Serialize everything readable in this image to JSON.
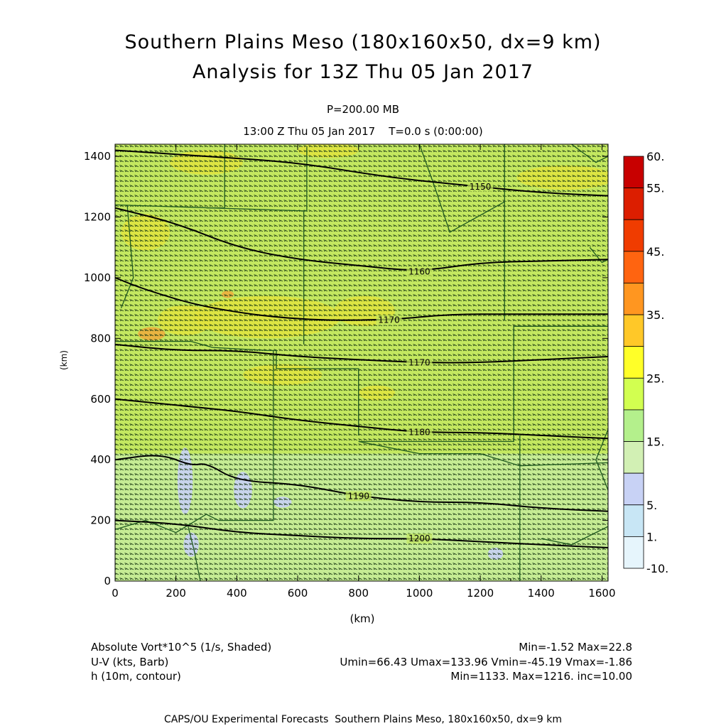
{
  "header": {
    "title_line1": "Southern Plains Meso (180x160x50, dx=9 km)",
    "title_line2": "Analysis for 13Z Thu 05 Jan 2017",
    "level": "P=200.00 MB",
    "valid_time": "13:00 Z Thu 05 Jan 2017    T=0.0 s (0:00:00)"
  },
  "chart_data": {
    "type": "heatmap",
    "xlabel": "(km)",
    "ylabel": "(km)",
    "xlim": [
      0,
      1620
    ],
    "ylim": [
      0,
      1440
    ],
    "x_ticks": [
      "0",
      "200",
      "400",
      "600",
      "800",
      "1000",
      "1200",
      "1400",
      "1600"
    ],
    "y_ticks": [
      "0",
      "200",
      "400",
      "600",
      "800",
      "1000",
      "1200",
      "1400"
    ],
    "colorbar": {
      "levels": [
        "60.",
        "55.",
        "45.",
        "35.",
        "25.",
        "15.",
        "5.",
        "1.",
        "-10."
      ],
      "colors": [
        "#c80000",
        "#dc1e00",
        "#f03c00",
        "#ff6410",
        "#ff9620",
        "#ffc828",
        "#ffff28",
        "#d2ff50",
        "#b4f08c",
        "#d2f0b4",
        "#c8d2f5",
        "#c8e6f5",
        "#e6f5fc"
      ]
    },
    "shading_colors": {
      "base_green": "#c4e860",
      "light_green": "#c6ec94",
      "yellow": "#e4e43c",
      "orange": "#f0aa3c",
      "blue": "#c8d2f5"
    },
    "height_contours": [
      {
        "label": "1150",
        "points": [
          [
            0,
            1420
          ],
          [
            300,
            1400
          ],
          [
            600,
            1380
          ],
          [
            900,
            1330
          ],
          [
            1200,
            1300
          ],
          [
            1400,
            1280
          ],
          [
            1620,
            1270
          ]
        ]
      },
      {
        "label": "1160",
        "points": [
          [
            0,
            1230
          ],
          [
            200,
            1180
          ],
          [
            400,
            1100
          ],
          [
            600,
            1060
          ],
          [
            800,
            1040
          ],
          [
            1000,
            1020
          ],
          [
            1200,
            1050
          ],
          [
            1400,
            1055
          ],
          [
            1620,
            1060
          ]
        ]
      },
      {
        "label": "1170",
        "points": [
          [
            0,
            1000
          ],
          [
            100,
            960
          ],
          [
            300,
            900
          ],
          [
            600,
            860
          ],
          [
            900,
            860
          ],
          [
            1100,
            880
          ],
          [
            1300,
            880
          ],
          [
            1620,
            880
          ]
        ]
      },
      {
        "label": "1170",
        "points": [
          [
            0,
            780
          ],
          [
            200,
            760
          ],
          [
            400,
            760
          ],
          [
            600,
            740
          ],
          [
            800,
            730
          ],
          [
            1000,
            720
          ],
          [
            1200,
            720
          ],
          [
            1400,
            730
          ],
          [
            1620,
            740
          ]
        ]
      },
      {
        "label": "1180",
        "points": [
          [
            0,
            600
          ],
          [
            200,
            580
          ],
          [
            400,
            560
          ],
          [
            600,
            530
          ],
          [
            800,
            510
          ],
          [
            1000,
            490
          ],
          [
            1200,
            490
          ],
          [
            1400,
            480
          ],
          [
            1620,
            470
          ]
        ]
      },
      {
        "label": "1190",
        "points": [
          [
            0,
            400
          ],
          [
            150,
            420
          ],
          [
            250,
            380
          ],
          [
            300,
            390
          ],
          [
            400,
            330
          ],
          [
            600,
            320
          ],
          [
            800,
            280
          ],
          [
            1000,
            260
          ],
          [
            1200,
            260
          ],
          [
            1400,
            240
          ],
          [
            1620,
            230
          ]
        ]
      },
      {
        "label": "1200",
        "points": [
          [
            0,
            200
          ],
          [
            200,
            190
          ],
          [
            400,
            160
          ],
          [
            600,
            150
          ],
          [
            800,
            140
          ],
          [
            1000,
            140
          ],
          [
            1200,
            130
          ],
          [
            1400,
            120
          ],
          [
            1620,
            110
          ]
        ]
      }
    ],
    "series": [
      {
        "name": "Absolute Vort*10^5 (1/s, Shaded)",
        "min": -1.52,
        "max": 22.8
      },
      {
        "name": "U-V (kts, Barb)",
        "umin": 66.43,
        "umax": 133.96,
        "vmin": -45.19,
        "vmax": -1.86
      },
      {
        "name": "h (10m, contour)",
        "min": 1133,
        "max": 1216,
        "inc": 10.0
      }
    ]
  },
  "legend": {
    "row1_left": "Absolute Vort*10^5 (1/s, Shaded)",
    "row1_right": "Min=-1.52 Max=22.8",
    "row2_left": "U-V (kts, Barb)",
    "row2_right": "Umin=66.43 Umax=133.96 Vmin=-45.19 Vmax=-1.86",
    "row3_left": "h (10m, contour)",
    "row3_right": "Min=1133. Max=1216. inc=10.00"
  },
  "footer": {
    "credit": "CAPS/OU Experimental Forecasts  Southern Plains Meso, 180x160x50, dx=9 km"
  }
}
